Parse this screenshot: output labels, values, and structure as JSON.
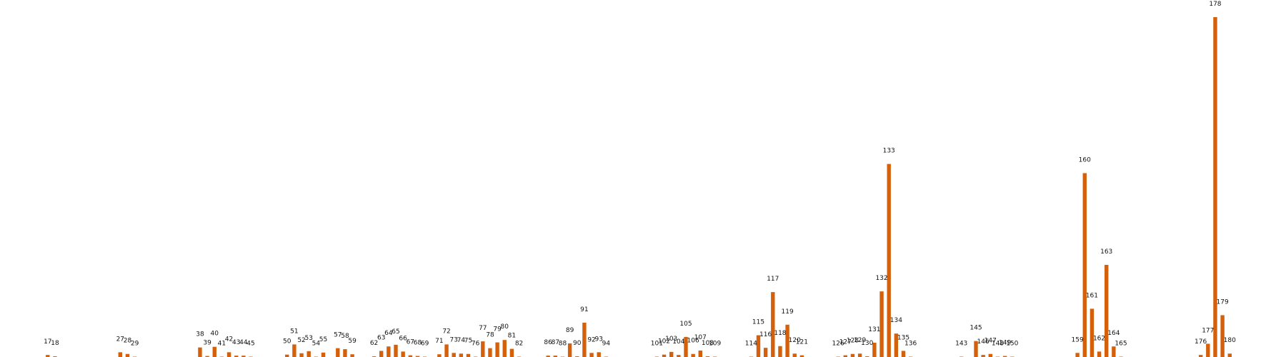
{
  "colors": {
    "bar": "#d4600c",
    "label": "#111111",
    "background": "#ffffff"
  },
  "chart_data": {
    "type": "bar",
    "title": "",
    "xlabel": "",
    "ylabel": "",
    "grid": false,
    "axes_visible": false,
    "xlim": [
      0,
      180
    ],
    "ylim": [
      0,
      100
    ],
    "points": [
      {
        "x": 17,
        "y": 0.6
      },
      {
        "x": 18,
        "y": 0.2
      },
      {
        "x": 27,
        "y": 1.4
      },
      {
        "x": 28,
        "y": 0.9
      },
      {
        "x": 29,
        "y": 0.1
      },
      {
        "x": 38,
        "y": 2.8
      },
      {
        "x": 39,
        "y": 0.3
      },
      {
        "x": 40,
        "y": 3.0
      },
      {
        "x": 41,
        "y": 0.1
      },
      {
        "x": 42,
        "y": 1.4
      },
      {
        "x": 43,
        "y": 0.4
      },
      {
        "x": 44,
        "y": 0.4
      },
      {
        "x": 45,
        "y": 0.1
      },
      {
        "x": 50,
        "y": 0.7
      },
      {
        "x": 51,
        "y": 3.7
      },
      {
        "x": 52,
        "y": 1.1
      },
      {
        "x": 53,
        "y": 1.7
      },
      {
        "x": 54,
        "y": 0.1
      },
      {
        "x": 55,
        "y": 1.3
      },
      {
        "x": 57,
        "y": 2.6
      },
      {
        "x": 58,
        "y": 2.3
      },
      {
        "x": 59,
        "y": 0.8
      },
      {
        "x": 62,
        "y": 0.2
      },
      {
        "x": 63,
        "y": 1.8
      },
      {
        "x": 64,
        "y": 3.1
      },
      {
        "x": 65,
        "y": 3.6
      },
      {
        "x": 66,
        "y": 1.6
      },
      {
        "x": 67,
        "y": 0.5
      },
      {
        "x": 68,
        "y": 0.3
      },
      {
        "x": 69,
        "y": 0.1
      },
      {
        "x": 71,
        "y": 0.8
      },
      {
        "x": 72,
        "y": 3.7
      },
      {
        "x": 73,
        "y": 1.2
      },
      {
        "x": 74,
        "y": 1.0
      },
      {
        "x": 75,
        "y": 0.9
      },
      {
        "x": 76,
        "y": 0.1
      },
      {
        "x": 77,
        "y": 4.6
      },
      {
        "x": 78,
        "y": 2.6
      },
      {
        "x": 79,
        "y": 4.3
      },
      {
        "x": 80,
        "y": 5.0
      },
      {
        "x": 81,
        "y": 2.4
      },
      {
        "x": 82,
        "y": 0.1
      },
      {
        "x": 86,
        "y": 0.4
      },
      {
        "x": 87,
        "y": 0.4
      },
      {
        "x": 88,
        "y": 0.1
      },
      {
        "x": 89,
        "y": 4.0
      },
      {
        "x": 90,
        "y": 0.2
      },
      {
        "x": 91,
        "y": 10.1
      },
      {
        "x": 92,
        "y": 1.2
      },
      {
        "x": 93,
        "y": 1.4
      },
      {
        "x": 94,
        "y": 0.1
      },
      {
        "x": 101,
        "y": 0.1
      },
      {
        "x": 102,
        "y": 0.7
      },
      {
        "x": 103,
        "y": 1.5
      },
      {
        "x": 104,
        "y": 0.6
      },
      {
        "x": 105,
        "y": 5.9
      },
      {
        "x": 106,
        "y": 0.9
      },
      {
        "x": 107,
        "y": 1.9
      },
      {
        "x": 108,
        "y": 0.2
      },
      {
        "x": 109,
        "y": 0.1
      },
      {
        "x": 114,
        "y": 0.1
      },
      {
        "x": 115,
        "y": 6.4
      },
      {
        "x": 116,
        "y": 2.7
      },
      {
        "x": 117,
        "y": 19.1
      },
      {
        "x": 118,
        "y": 3.2
      },
      {
        "x": 119,
        "y": 9.5
      },
      {
        "x": 120,
        "y": 1.0
      },
      {
        "x": 121,
        "y": 0.5
      },
      {
        "x": 126,
        "y": 0.1
      },
      {
        "x": 127,
        "y": 0.5
      },
      {
        "x": 128,
        "y": 0.9
      },
      {
        "x": 129,
        "y": 1.0
      },
      {
        "x": 130,
        "y": 0.2
      },
      {
        "x": 131,
        "y": 4.2
      },
      {
        "x": 132,
        "y": 19.3
      },
      {
        "x": 133,
        "y": 56.8
      },
      {
        "x": 134,
        "y": 6.9
      },
      {
        "x": 135,
        "y": 1.8
      },
      {
        "x": 136,
        "y": 0.1
      },
      {
        "x": 143,
        "y": 0.1
      },
      {
        "x": 145,
        "y": 4.7
      },
      {
        "x": 146,
        "y": 0.6
      },
      {
        "x": 147,
        "y": 0.9
      },
      {
        "x": 148,
        "y": 0.1
      },
      {
        "x": 149,
        "y": 0.3
      },
      {
        "x": 150,
        "y": 0.1
      },
      {
        "x": 159,
        "y": 1.2
      },
      {
        "x": 160,
        "y": 54.1
      },
      {
        "x": 161,
        "y": 14.2
      },
      {
        "x": 162,
        "y": 1.6
      },
      {
        "x": 163,
        "y": 27.1
      },
      {
        "x": 164,
        "y": 3.1
      },
      {
        "x": 165,
        "y": 0.1
      },
      {
        "x": 176,
        "y": 0.6
      },
      {
        "x": 177,
        "y": 3.9
      },
      {
        "x": 178,
        "y": 100
      },
      {
        "x": 179,
        "y": 12.3
      },
      {
        "x": 180,
        "y": 1.0
      }
    ]
  }
}
